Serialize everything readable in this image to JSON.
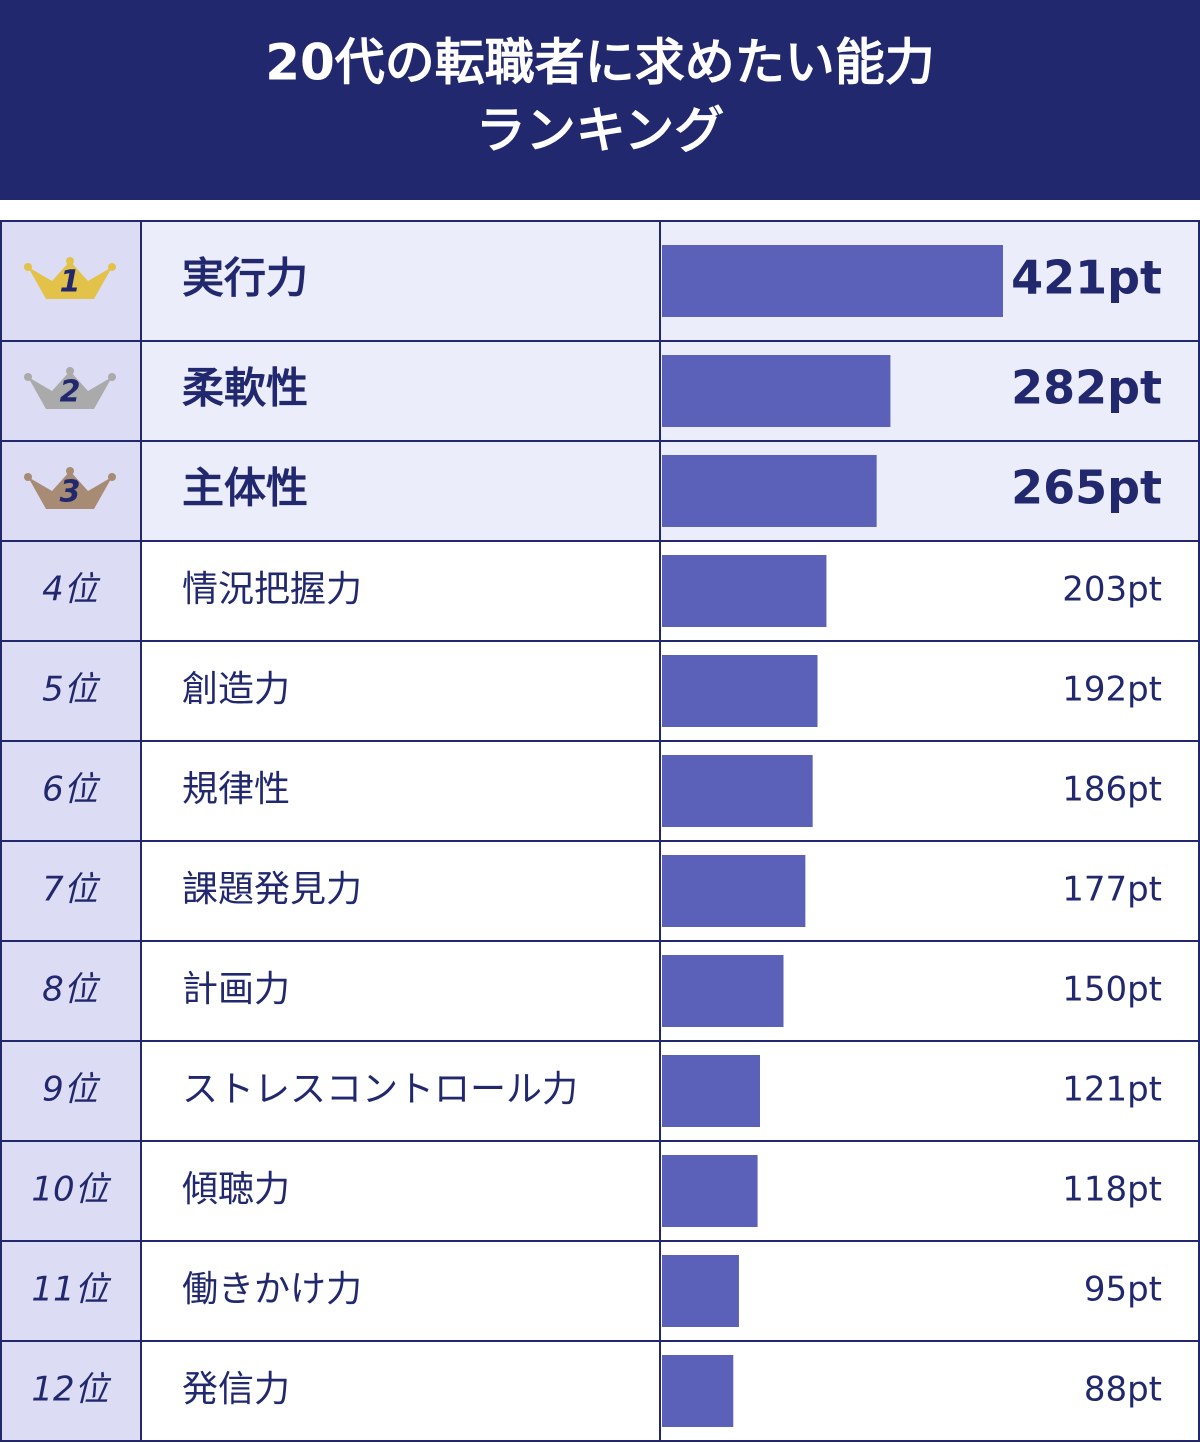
{
  "chart_data": {
    "type": "bar",
    "title": [
      "20代の転職者に求めたい能力",
      "ランキング"
    ],
    "ranks": [
      "1",
      "2",
      "3",
      "4位",
      "5位",
      "6位",
      "7位",
      "8位",
      "9位",
      "10位",
      "11位",
      "12位"
    ],
    "categories": [
      "実行力",
      "柔軟性",
      "主体性",
      "情況把握力",
      "創造力",
      "規律性",
      "課題発見力",
      "計画力",
      "ストレスコントロール力",
      "傾聴力",
      "働きかけ力",
      "発信力"
    ],
    "values": [
      421,
      282,
      265,
      203,
      192,
      186,
      177,
      150,
      121,
      118,
      95,
      88
    ],
    "value_labels": [
      "421pt",
      "282pt",
      "265pt",
      "203pt",
      "192pt",
      "186pt",
      "177pt",
      "150pt",
      "121pt",
      "118pt",
      "95pt",
      "88pt"
    ],
    "color": "#5b60b8",
    "crown_colors": [
      "#e3c24a",
      "#aaaaaa",
      "#a88b75"
    ]
  }
}
